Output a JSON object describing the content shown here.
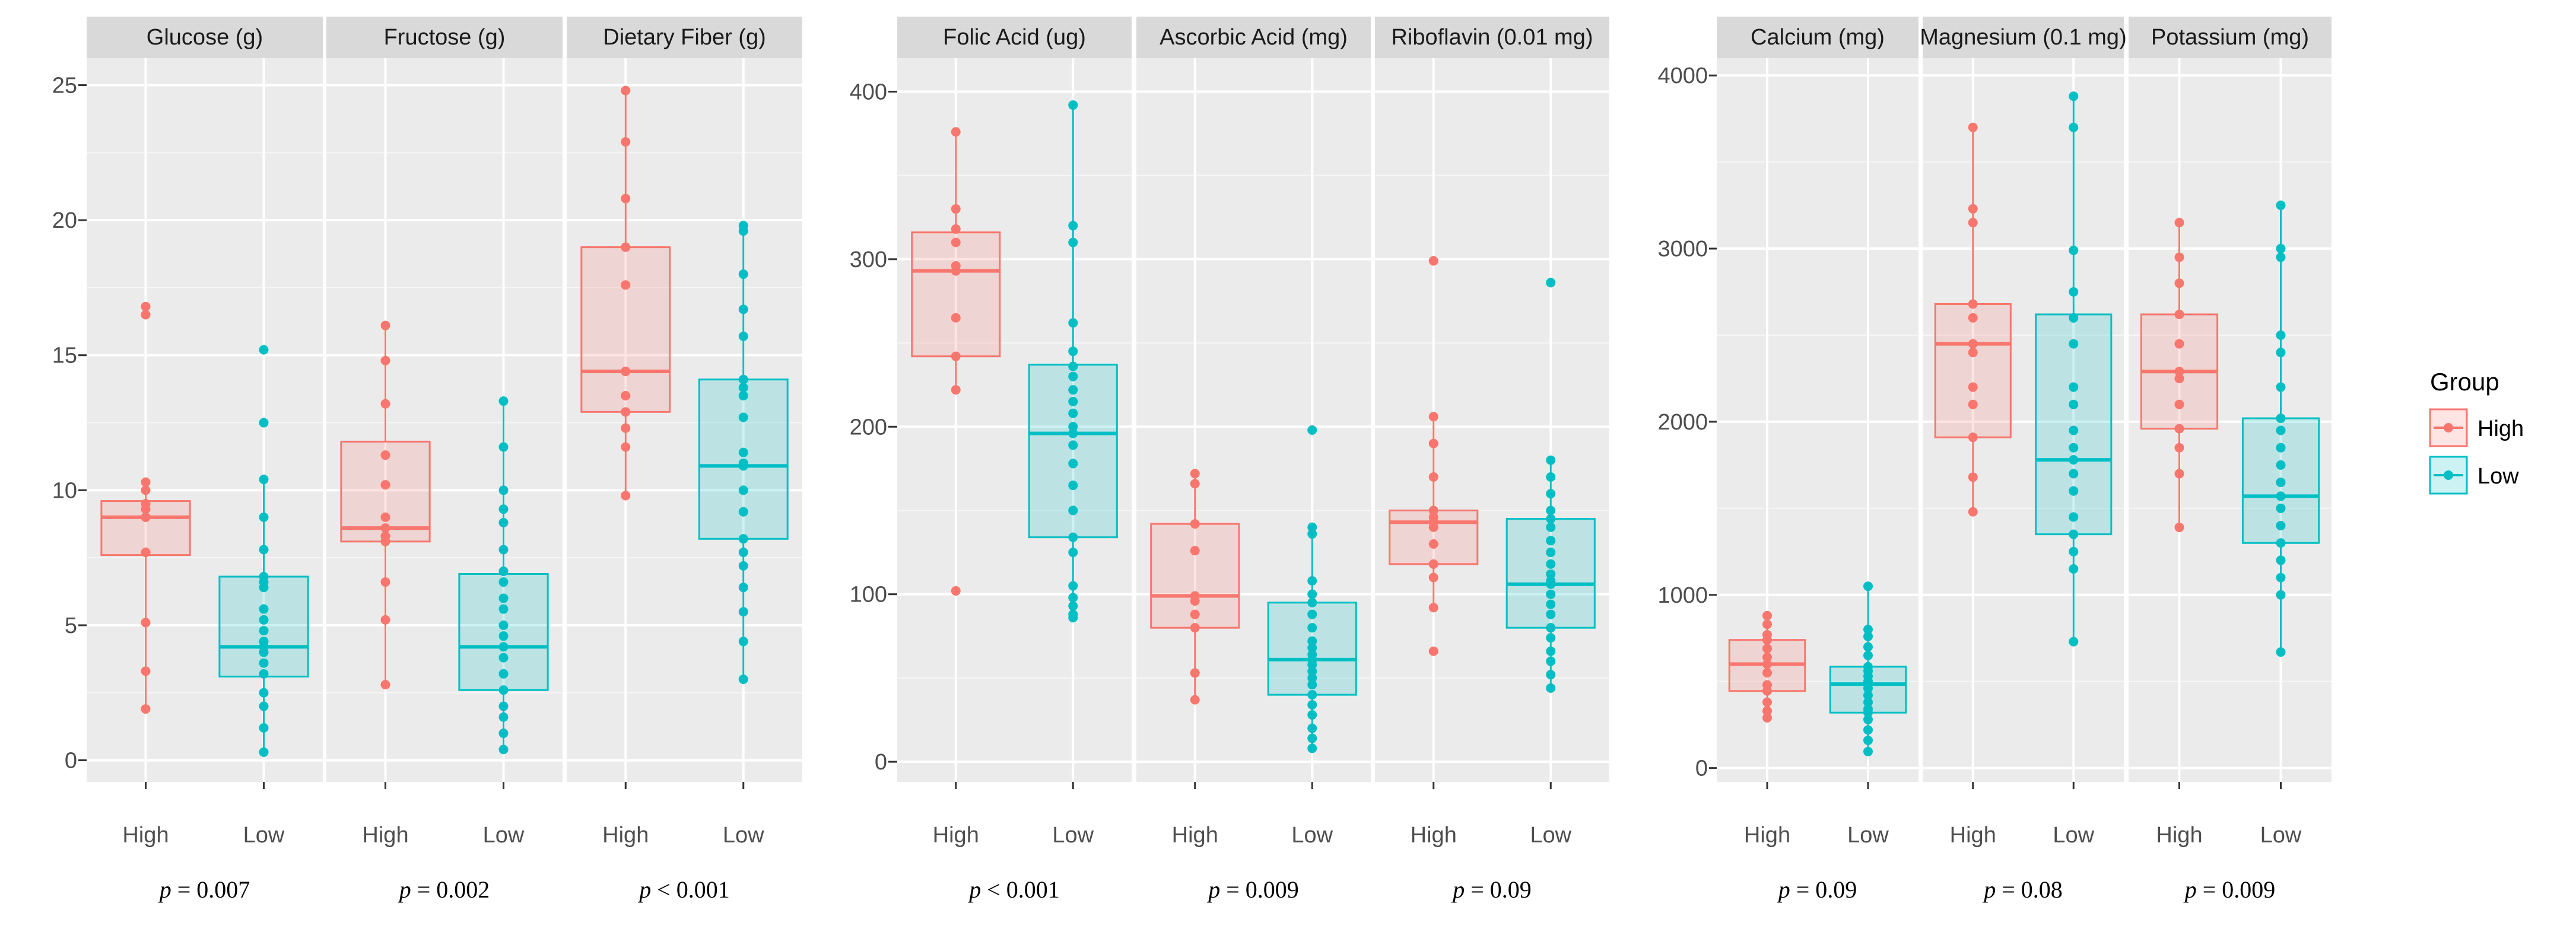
{
  "chart_data": [
    {
      "type": "box",
      "ylim": [
        -0.8,
        26
      ],
      "yticks": [
        0,
        5,
        10,
        15,
        20,
        25
      ],
      "categories": [
        "High",
        "Low"
      ],
      "panels": [
        {
          "title": "Glucose (g)",
          "p_prefix": "p",
          "p_text": " = 0.007",
          "boxes": [
            {
              "group": "High",
              "q1": 7.6,
              "median": 9.0,
              "q3": 9.6,
              "whisker_low": 1.9,
              "whisker_high": 10.3,
              "points": [
                16.8,
                16.5,
                10.3,
                10.0,
                9.5,
                9.3,
                9.0,
                9.0,
                7.7,
                5.1,
                3.3,
                1.9
              ]
            },
            {
              "group": "Low",
              "q1": 3.1,
              "median": 4.2,
              "q3": 6.8,
              "whisker_low": 0.3,
              "whisker_high": 10.4,
              "points": [
                15.2,
                12.5,
                10.4,
                9.0,
                7.8,
                6.8,
                6.6,
                6.4,
                5.6,
                5.2,
                4.8,
                4.4,
                4.2,
                4.0,
                3.6,
                3.2,
                2.5,
                2.0,
                1.2,
                0.3
              ]
            }
          ]
        },
        {
          "title": "Fructose (g)",
          "p_prefix": "p",
          "p_text": " = 0.002",
          "boxes": [
            {
              "group": "High",
              "q1": 8.1,
              "median": 8.6,
              "q3": 11.8,
              "whisker_low": 2.8,
              "whisker_high": 16.1,
              "points": [
                16.1,
                14.8,
                13.2,
                11.3,
                10.2,
                9.0,
                8.6,
                8.3,
                8.1,
                6.6,
                5.2,
                2.8
              ]
            },
            {
              "group": "Low",
              "q1": 2.6,
              "median": 4.2,
              "q3": 6.9,
              "whisker_low": 0.4,
              "whisker_high": 13.3,
              "points": [
                13.3,
                11.6,
                10.0,
                9.3,
                8.8,
                7.8,
                7.0,
                6.6,
                6.0,
                5.6,
                5.0,
                4.6,
                4.2,
                3.8,
                3.2,
                2.6,
                2.0,
                1.6,
                1.0,
                0.4
              ]
            }
          ]
        },
        {
          "title": "Dietary Fiber (g)",
          "p_prefix": "p",
          "p_text": " < 0.001",
          "boxes": [
            {
              "group": "High",
              "q1": 12.9,
              "median": 14.4,
              "q3": 19.0,
              "whisker_low": 9.8,
              "whisker_high": 24.8,
              "points": [
                24.8,
                22.9,
                20.8,
                19.0,
                17.6,
                14.4,
                14.4,
                13.5,
                12.9,
                12.3,
                11.6,
                9.8
              ]
            },
            {
              "group": "Low",
              "q1": 8.2,
              "median": 10.9,
              "q3": 14.1,
              "whisker_low": 3.0,
              "whisker_high": 19.8,
              "points": [
                19.8,
                19.6,
                18.0,
                16.7,
                15.7,
                14.1,
                13.8,
                13.5,
                12.7,
                11.4,
                11.0,
                10.9,
                10.0,
                9.2,
                8.2,
                7.7,
                7.2,
                6.4,
                5.5,
                4.4,
                3.0
              ]
            }
          ]
        }
      ]
    },
    {
      "type": "box",
      "ylim": [
        -12,
        420
      ],
      "yticks": [
        0,
        100,
        200,
        300,
        400
      ],
      "categories": [
        "High",
        "Low"
      ],
      "panels": [
        {
          "title": "Folic Acid (ug)",
          "p_prefix": "p",
          "p_text": " < 0.001",
          "boxes": [
            {
              "group": "High",
              "q1": 242,
              "median": 293,
              "q3": 316,
              "whisker_low": 222,
              "whisker_high": 376,
              "points": [
                376,
                330,
                318,
                310,
                296,
                293,
                265,
                242,
                222,
                102
              ]
            },
            {
              "group": "Low",
              "q1": 134,
              "median": 196,
              "q3": 237,
              "whisker_low": 86,
              "whisker_high": 392,
              "points": [
                392,
                320,
                310,
                262,
                245,
                236,
                230,
                222,
                215,
                208,
                200,
                196,
                189,
                178,
                165,
                150,
                134,
                125,
                105,
                98,
                93,
                88,
                86
              ]
            }
          ]
        },
        {
          "title": "Ascorbic Acid (mg)",
          "p_prefix": "p",
          "p_text": " = 0.009",
          "boxes": [
            {
              "group": "High",
              "q1": 80,
              "median": 99,
              "q3": 142,
              "whisker_low": 37,
              "whisker_high": 172,
              "points": [
                172,
                166,
                142,
                126,
                99,
                96,
                88,
                80,
                53,
                37
              ]
            },
            {
              "group": "Low",
              "q1": 40,
              "median": 61,
              "q3": 95,
              "whisker_low": 8,
              "whisker_high": 140,
              "points": [
                198,
                140,
                136,
                108,
                100,
                95,
                88,
                80,
                72,
                68,
                64,
                61,
                58,
                54,
                50,
                46,
                40,
                34,
                28,
                20,
                14,
                8
              ]
            }
          ]
        },
        {
          "title": "Riboflavin (0.01 mg)",
          "p_prefix": "p",
          "p_text": " = 0.09",
          "boxes": [
            {
              "group": "High",
              "q1": 118,
              "median": 143,
              "q3": 150,
              "whisker_low": 92,
              "whisker_high": 206,
              "points": [
                299,
                206,
                190,
                170,
                150,
                146,
                143,
                140,
                130,
                118,
                110,
                92,
                66
              ]
            },
            {
              "group": "Low",
              "q1": 80,
              "median": 106,
              "q3": 145,
              "whisker_low": 44,
              "whisker_high": 180,
              "points": [
                286,
                180,
                170,
                160,
                150,
                145,
                140,
                132,
                125,
                118,
                112,
                108,
                106,
                100,
                94,
                88,
                80,
                74,
                66,
                60,
                52,
                44
              ]
            }
          ]
        }
      ]
    },
    {
      "type": "box",
      "ylim": [
        -80,
        4100
      ],
      "yticks": [
        0,
        1000,
        2000,
        3000,
        4000
      ],
      "categories": [
        "High",
        "Low"
      ],
      "panels": [
        {
          "title": "Calcium (mg)",
          "p_prefix": "p",
          "p_text": " = 0.09",
          "boxes": [
            {
              "group": "High",
              "q1": 445,
              "median": 600,
              "q3": 740,
              "whisker_low": 290,
              "whisker_high": 880,
              "points": [
                880,
                830,
                770,
                740,
                690,
                640,
                600,
                550,
                480,
                445,
                380,
                330,
                290
              ]
            },
            {
              "group": "Low",
              "q1": 320,
              "median": 485,
              "q3": 585,
              "whisker_low": 95,
              "whisker_high": 1050,
              "points": [
                1050,
                800,
                760,
                700,
                650,
                585,
                560,
                530,
                500,
                485,
                460,
                420,
                380,
                340,
                320,
                280,
                220,
                160,
                95
              ]
            }
          ]
        },
        {
          "title": "Magnesium (0.1 mg)",
          "p_prefix": "p",
          "p_text": " = 0.08",
          "boxes": [
            {
              "group": "High",
              "q1": 1910,
              "median": 2450,
              "q3": 2680,
              "whisker_low": 1480,
              "whisker_high": 3700,
              "points": [
                3700,
                3230,
                3150,
                2680,
                2600,
                2450,
                2400,
                2200,
                2100,
                1910,
                1680,
                1480
              ]
            },
            {
              "group": "Low",
              "q1": 1350,
              "median": 1780,
              "q3": 2620,
              "whisker_low": 730,
              "whisker_high": 3880,
              "points": [
                3880,
                3700,
                2990,
                2750,
                2600,
                2450,
                2200,
                2100,
                1950,
                1850,
                1780,
                1700,
                1600,
                1450,
                1350,
                1250,
                1150,
                730
              ]
            }
          ]
        },
        {
          "title": "Potassium (mg)",
          "p_prefix": "p",
          "p_text": " = 0.009",
          "boxes": [
            {
              "group": "High",
              "q1": 1960,
              "median": 2290,
              "q3": 2620,
              "whisker_low": 1390,
              "whisker_high": 3150,
              "points": [
                3150,
                2950,
                2800,
                2620,
                2450,
                2290,
                2250,
                2100,
                1960,
                1850,
                1700,
                1390
              ]
            },
            {
              "group": "Low",
              "q1": 1300,
              "median": 1570,
              "q3": 2020,
              "whisker_low": 670,
              "whisker_high": 3250,
              "points": [
                3250,
                3000,
                2950,
                2500,
                2400,
                2200,
                2020,
                1950,
                1850,
                1750,
                1650,
                1570,
                1500,
                1400,
                1300,
                1200,
                1100,
                1000,
                670
              ]
            }
          ]
        }
      ]
    }
  ],
  "legend": {
    "title": "Group",
    "items": [
      {
        "label": "High",
        "color": "#F8766D"
      },
      {
        "label": "Low",
        "color": "#00BFC4"
      }
    ]
  },
  "colors": {
    "High": "#F8766D",
    "Low": "#00BFC4",
    "panel_bg": "#EBEBEB",
    "strip_bg": "#D9D9D9",
    "grid": "#FFFFFF"
  }
}
